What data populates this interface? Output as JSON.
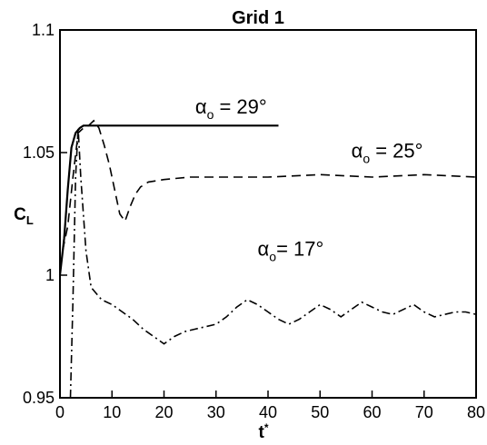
{
  "chart_data": {
    "type": "line",
    "title": "Grid 1",
    "xlabel": "t*",
    "ylabel": "C_L",
    "xlim": [
      0,
      80
    ],
    "ylim": [
      0.95,
      1.1
    ],
    "x_ticks": [
      "0",
      "10",
      "20",
      "30",
      "40",
      "50",
      "60",
      "70",
      "80"
    ],
    "y_ticks": [
      "0.95",
      "1",
      "1.05",
      "1.1"
    ],
    "grid": false,
    "series": [
      {
        "name": "α_o = 29°",
        "style": "solid",
        "x": [
          0,
          0.8,
          1.5,
          2.2,
          3,
          3.8,
          4.5,
          6,
          10,
          20,
          30,
          42
        ],
        "y": [
          1.0,
          1.015,
          1.035,
          1.052,
          1.058,
          1.06,
          1.061,
          1.061,
          1.061,
          1.061,
          1.061,
          1.061
        ]
      },
      {
        "name": "α_o = 25°",
        "style": "dashed",
        "x": [
          0.5,
          1.5,
          2.5,
          3.5,
          4.5,
          5.5,
          6.5,
          7.5,
          8.5,
          9.5,
          10.5,
          11.5,
          12.5,
          13.5,
          14.5,
          15.5,
          17,
          20,
          25,
          30,
          40,
          50,
          60,
          70,
          80
        ],
        "y": [
          1.01,
          1.02,
          1.04,
          1.058,
          1.06,
          1.061,
          1.063,
          1.06,
          1.053,
          1.045,
          1.035,
          1.025,
          1.022,
          1.028,
          1.033,
          1.036,
          1.038,
          1.039,
          1.04,
          1.04,
          1.04,
          1.041,
          1.04,
          1.041,
          1.04
        ]
      },
      {
        "name": "α_o = 17°",
        "style": "dash-dot",
        "x": [
          2,
          2.5,
          3,
          3.5,
          4,
          5,
          6,
          8,
          10,
          12,
          14,
          16,
          18,
          20,
          22,
          24,
          26,
          28,
          30,
          32,
          34,
          36,
          38,
          40,
          42,
          44,
          46,
          48,
          50,
          52,
          54,
          56,
          58,
          60,
          62,
          64,
          66,
          68,
          70,
          72,
          74,
          76,
          78,
          80
        ],
        "y": [
          0.95,
          0.99,
          1.04,
          1.06,
          1.04,
          1.01,
          0.995,
          0.99,
          0.988,
          0.985,
          0.982,
          0.978,
          0.975,
          0.972,
          0.975,
          0.977,
          0.978,
          0.979,
          0.98,
          0.983,
          0.987,
          0.99,
          0.988,
          0.985,
          0.982,
          0.98,
          0.982,
          0.985,
          0.988,
          0.986,
          0.983,
          0.986,
          0.989,
          0.987,
          0.985,
          0.984,
          0.986,
          0.988,
          0.985,
          0.983,
          0.984,
          0.985,
          0.985,
          0.984
        ]
      }
    ],
    "annotations": [
      {
        "series": 0,
        "base": "α",
        "sub": "o",
        "rest": " = 29°"
      },
      {
        "series": 1,
        "base": "α",
        "sub": "o",
        "rest": " = 25°"
      },
      {
        "series": 2,
        "base": "α",
        "sub": "o",
        "rest": "= 17°"
      }
    ]
  }
}
